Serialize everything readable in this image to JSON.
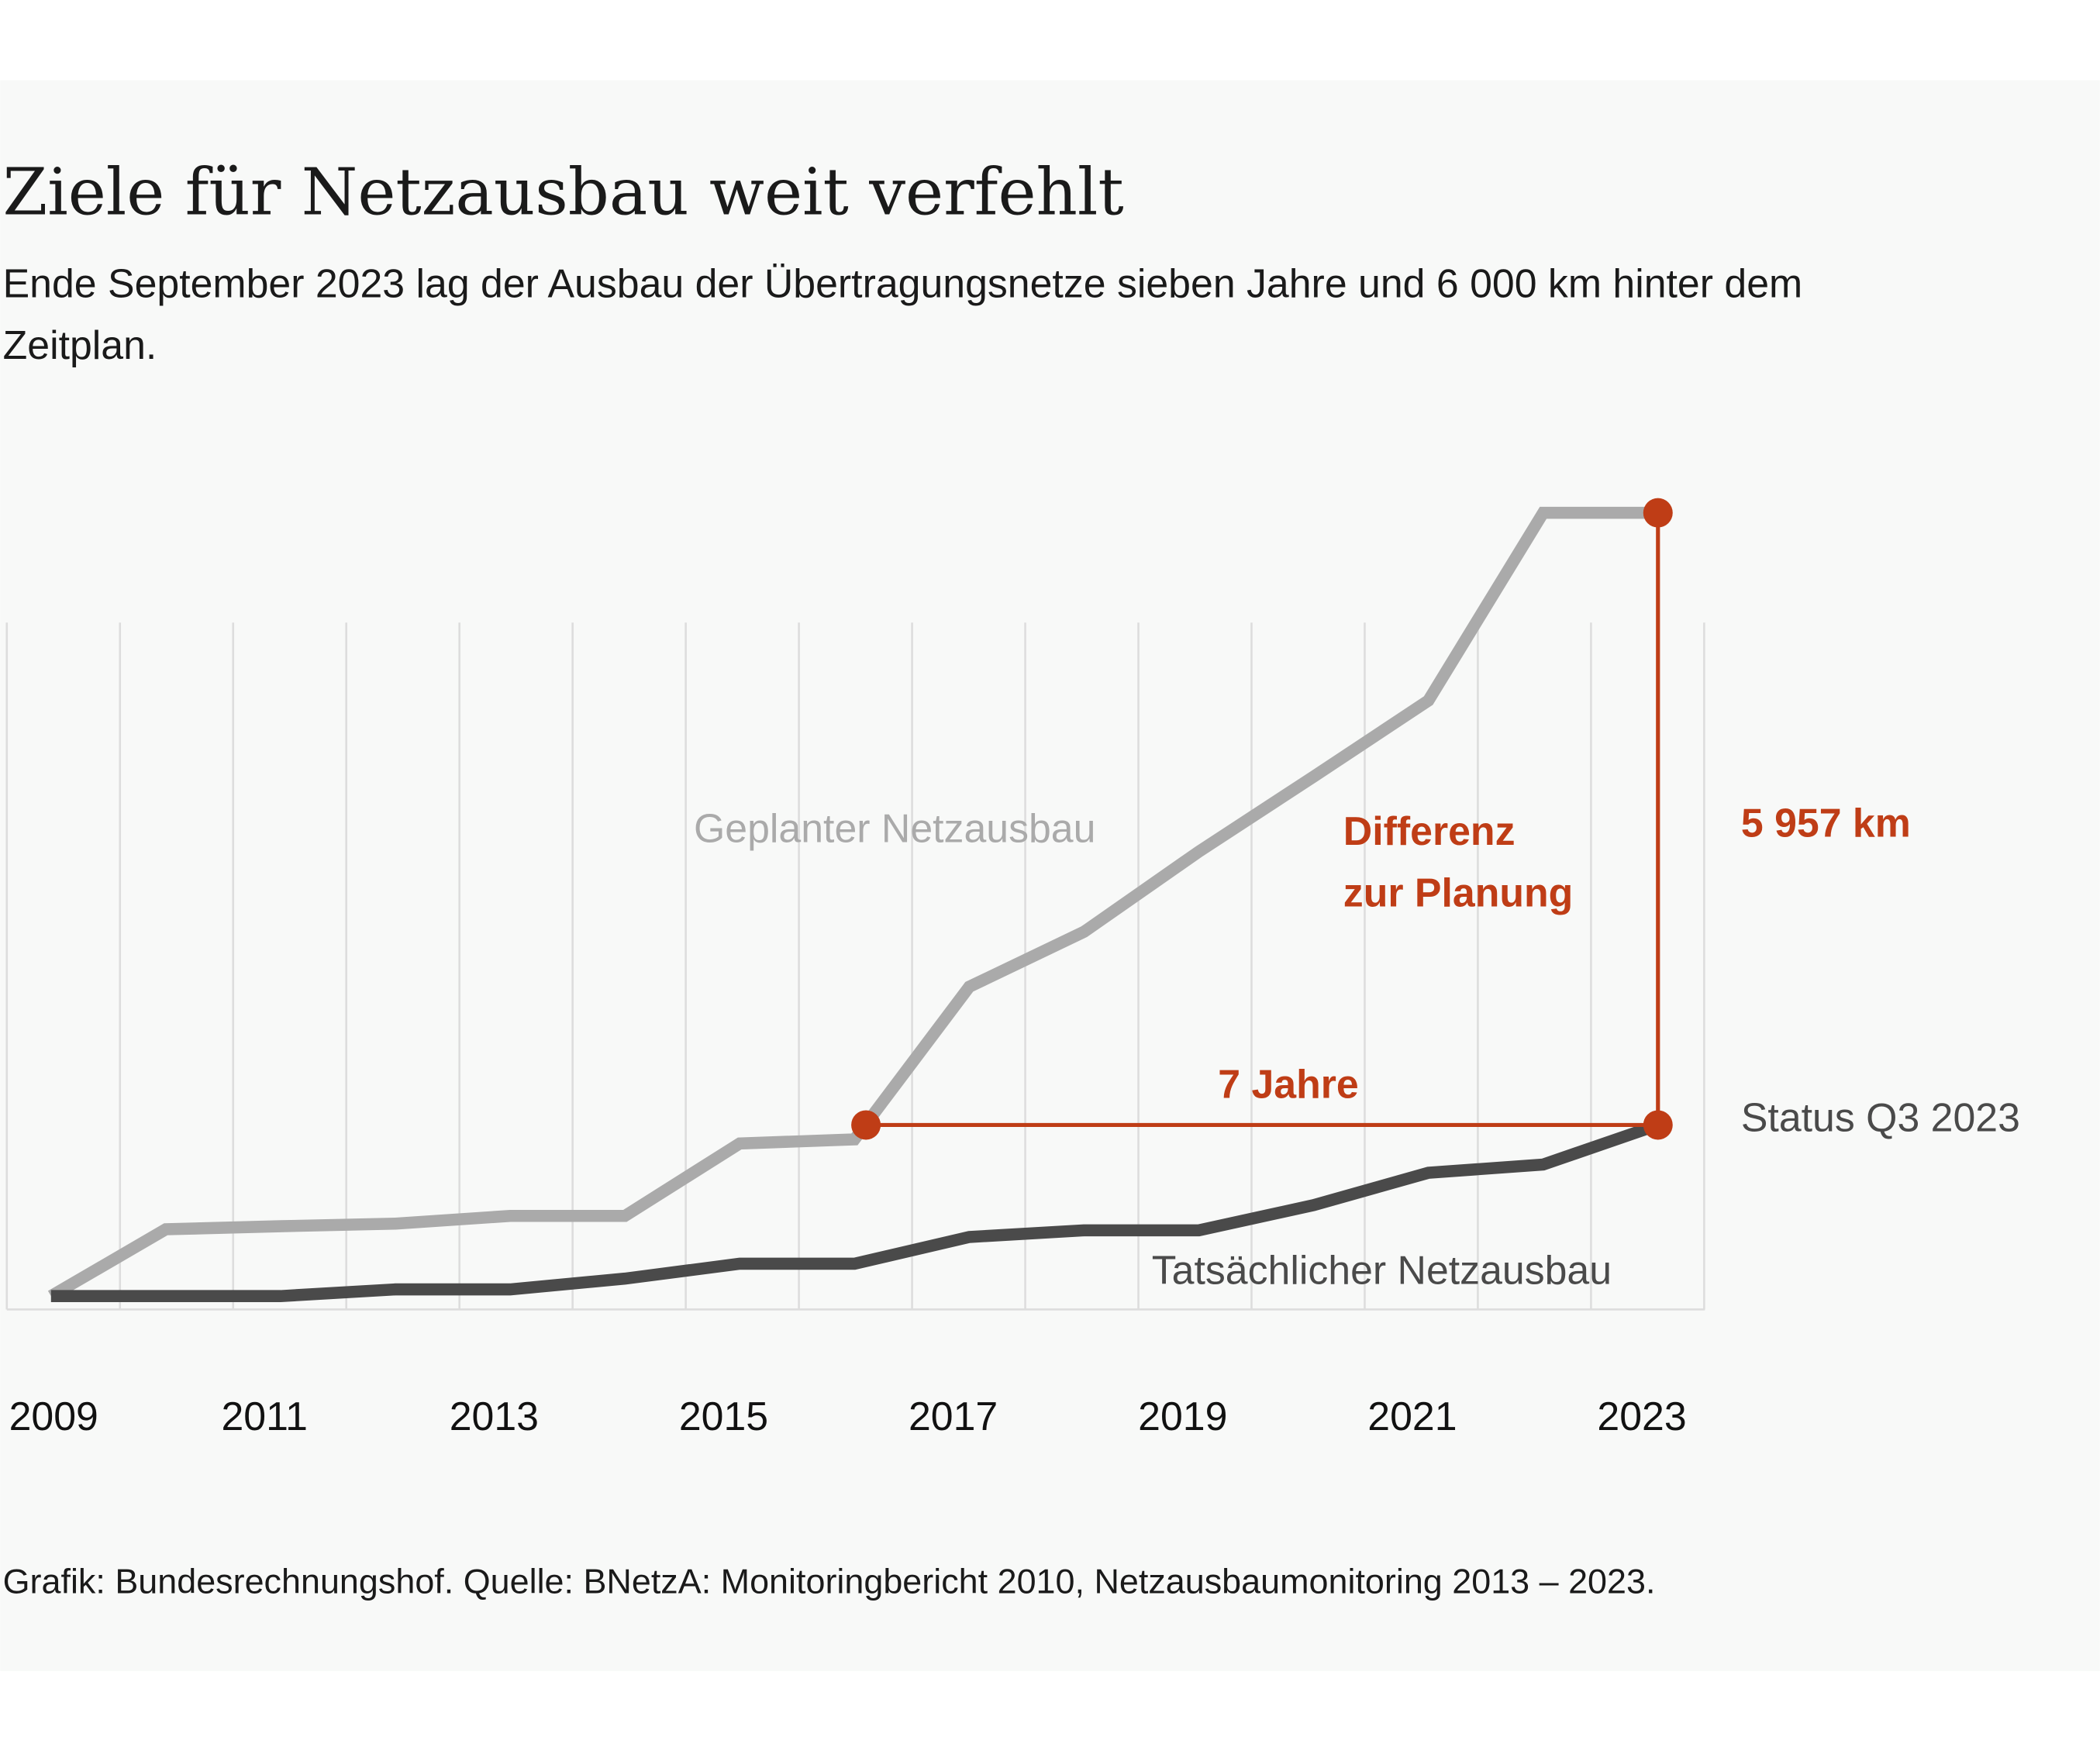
{
  "title": "Ziele für Netzausbau weit verfehlt",
  "subtitle_lines": [
    "Ende September 2023 lag der Ausbau der Übertragungsnetze sieben Jahre und 6 000 km hinter dem",
    "Zeitplan."
  ],
  "source": "Grafik: Bundesrechnungshof. Quelle: BNetzA: Monitoringbericht 2010, Netzausbaumonitoring 2013 – 2023.",
  "colors": {
    "planned": "#aaaaaa",
    "actual": "#4a4a4a",
    "accent": "#bf3d16",
    "panel": "#f8f9f8",
    "grid": "#dddddd"
  },
  "chart_data": {
    "type": "line",
    "title": "Ziele für Netzausbau weit verfehlt",
    "xlabel": "",
    "ylabel": "",
    "x_ticks": [
      "2009",
      "2011",
      "2013",
      "2015",
      "2017",
      "2019",
      "2021",
      "2023"
    ],
    "xlim": [
      2009,
      2023
    ],
    "ylim": [
      0,
      7700
    ],
    "grid": "vertical",
    "x": [
      2009,
      2010,
      2011,
      2012,
      2013,
      2014,
      2015,
      2016,
      2017,
      2018,
      2019,
      2020,
      2021,
      2022,
      2023
    ],
    "series": [
      {
        "name": "Geplanter Netzausbau",
        "values": [
          0,
          650,
          680,
          705,
          780,
          780,
          1485,
          1525,
          3010,
          3545,
          4325,
          5055,
          5795,
          7622,
          7622
        ]
      },
      {
        "name": "Tatsächlicher Netzausbau",
        "values": [
          0,
          0,
          0,
          65,
          65,
          170,
          315,
          315,
          575,
          640,
          640,
          885,
          1200,
          1280,
          1665
        ]
      }
    ],
    "annotations": {
      "status_label": "Status Q3 2023",
      "gap_years_label": "7 Jahre",
      "gap_years_from": 2016.1,
      "gap_km_label": "5 957 km",
      "diff_label_lines": [
        "Differenz",
        "zur Planung"
      ]
    }
  }
}
